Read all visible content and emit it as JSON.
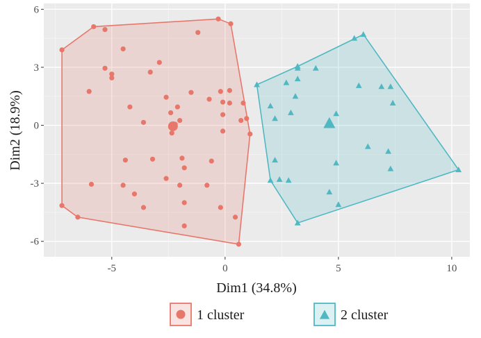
{
  "chart_data": {
    "type": "scatter",
    "title": "",
    "xlabel": "Dim1 (34.8%)",
    "ylabel": "Dim2 (18.9%)",
    "xlim": [
      -8.0,
      10.8
    ],
    "ylim": [
      -6.8,
      6.3
    ],
    "x_ticks": [
      -5,
      0,
      5,
      10
    ],
    "y_ticks": [
      -6,
      -3,
      0,
      3,
      6
    ],
    "x_tick_labels": [
      "-5",
      "0",
      "5",
      "10"
    ],
    "y_tick_labels": [
      "-6",
      "-3",
      "0",
      "3",
      "6"
    ],
    "grid": true,
    "background": "panel grey with white grid lines",
    "legend_position": "bottom",
    "series": [
      {
        "name": "1 cluster",
        "marker": "circle",
        "color": "#E8776B",
        "centroid": [
          -2.3,
          -0.05
        ],
        "hull": [
          [
            -7.2,
            3.9
          ],
          [
            -5.8,
            5.1
          ],
          [
            -0.3,
            5.5
          ],
          [
            0.25,
            5.25
          ],
          [
            1.1,
            -0.45
          ],
          [
            0.6,
            -6.15
          ],
          [
            -6.5,
            -4.75
          ],
          [
            -7.2,
            -4.15
          ]
        ],
        "points": [
          [
            -7.2,
            3.9
          ],
          [
            -5.8,
            5.1
          ],
          [
            -5.3,
            4.95
          ],
          [
            -0.3,
            5.5
          ],
          [
            0.25,
            5.25
          ],
          [
            -1.2,
            4.8
          ],
          [
            -4.5,
            3.95
          ],
          [
            -5.3,
            2.95
          ],
          [
            -5.0,
            2.65
          ],
          [
            -5.0,
            2.45
          ],
          [
            -3.3,
            2.75
          ],
          [
            -2.9,
            3.25
          ],
          [
            -6.0,
            1.75
          ],
          [
            -1.5,
            1.7
          ],
          [
            -4.2,
            0.95
          ],
          [
            -2.6,
            1.45
          ],
          [
            -2.1,
            0.95
          ],
          [
            -0.7,
            1.35
          ],
          [
            -0.2,
            1.75
          ],
          [
            0.2,
            1.8
          ],
          [
            -0.1,
            1.2
          ],
          [
            0.2,
            1.15
          ],
          [
            0.8,
            1.15
          ],
          [
            -2.4,
            0.65
          ],
          [
            -0.1,
            0.55
          ],
          [
            0.7,
            0.25
          ],
          [
            0.95,
            0.35
          ],
          [
            -3.6,
            0.15
          ],
          [
            -2.0,
            0.25
          ],
          [
            -2.4,
            -0.1
          ],
          [
            -2.2,
            0.05
          ],
          [
            -2.35,
            -0.4
          ],
          [
            -0.1,
            -0.3
          ],
          [
            1.1,
            -0.45
          ],
          [
            -4.4,
            -1.8
          ],
          [
            -3.2,
            -1.75
          ],
          [
            -1.9,
            -1.7
          ],
          [
            -0.6,
            -1.85
          ],
          [
            -1.8,
            -2.2
          ],
          [
            -2.6,
            -2.75
          ],
          [
            -5.9,
            -3.05
          ],
          [
            -4.5,
            -3.1
          ],
          [
            -2.0,
            -3.1
          ],
          [
            -0.8,
            -3.1
          ],
          [
            -4.0,
            -3.55
          ],
          [
            -3.6,
            -4.25
          ],
          [
            -1.8,
            -4.0
          ],
          [
            -0.2,
            -4.25
          ],
          [
            0.45,
            -4.75
          ],
          [
            -1.8,
            -5.2
          ],
          [
            -7.2,
            -4.15
          ],
          [
            -6.5,
            -4.75
          ],
          [
            0.6,
            -6.15
          ]
        ]
      },
      {
        "name": "2 cluster",
        "marker": "triangle",
        "color": "#4FB8C2",
        "centroid": [
          4.6,
          0.1
        ],
        "hull": [
          [
            1.4,
            2.1
          ],
          [
            3.2,
            3.05
          ],
          [
            6.1,
            4.7
          ],
          [
            10.3,
            -2.3
          ],
          [
            3.2,
            -5.05
          ],
          [
            2.0,
            -2.85
          ]
        ],
        "points": [
          [
            1.4,
            2.1
          ],
          [
            3.2,
            3.05
          ],
          [
            3.2,
            2.95
          ],
          [
            4.0,
            2.95
          ],
          [
            5.7,
            4.5
          ],
          [
            6.1,
            4.7
          ],
          [
            2.7,
            2.2
          ],
          [
            3.2,
            2.4
          ],
          [
            5.9,
            2.05
          ],
          [
            6.9,
            2.0
          ],
          [
            7.3,
            2.0
          ],
          [
            3.1,
            1.5
          ],
          [
            7.4,
            1.15
          ],
          [
            2.0,
            1.0
          ],
          [
            2.9,
            0.65
          ],
          [
            4.9,
            0.6
          ],
          [
            2.2,
            0.35
          ],
          [
            6.3,
            -1.1
          ],
          [
            7.2,
            -1.35
          ],
          [
            2.2,
            -1.8
          ],
          [
            4.9,
            -1.95
          ],
          [
            7.3,
            -2.25
          ],
          [
            2.0,
            -2.85
          ],
          [
            2.4,
            -2.8
          ],
          [
            2.8,
            -2.85
          ],
          [
            4.6,
            -3.45
          ],
          [
            5.0,
            -4.1
          ],
          [
            3.2,
            -5.05
          ],
          [
            10.3,
            -2.3
          ]
        ]
      }
    ]
  }
}
